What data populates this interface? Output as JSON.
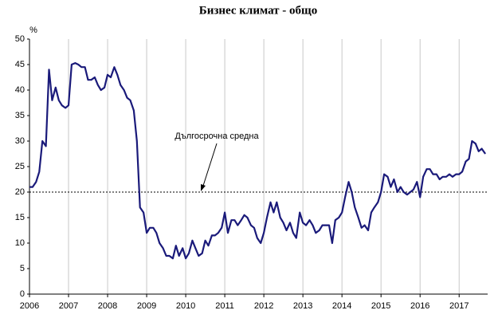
{
  "chart_data": {
    "type": "line",
    "title": "Бизнес климат - общо",
    "y_unit": "%",
    "x": [
      2006,
      2006.08,
      2006.17,
      2006.25,
      2006.33,
      2006.42,
      2006.5,
      2006.58,
      2006.67,
      2006.75,
      2006.83,
      2006.92,
      2007,
      2007.08,
      2007.17,
      2007.25,
      2007.33,
      2007.42,
      2007.5,
      2007.58,
      2007.67,
      2007.75,
      2007.83,
      2007.92,
      2008,
      2008.08,
      2008.17,
      2008.25,
      2008.33,
      2008.42,
      2008.5,
      2008.58,
      2008.67,
      2008.75,
      2008.83,
      2008.92,
      2009,
      2009.08,
      2009.17,
      2009.25,
      2009.33,
      2009.42,
      2009.5,
      2009.58,
      2009.67,
      2009.75,
      2009.83,
      2009.92,
      2010,
      2010.08,
      2010.17,
      2010.25,
      2010.33,
      2010.42,
      2010.5,
      2010.58,
      2010.67,
      2010.75,
      2010.83,
      2010.92,
      2011,
      2011.08,
      2011.17,
      2011.25,
      2011.33,
      2011.42,
      2011.5,
      2011.58,
      2011.67,
      2011.75,
      2011.83,
      2011.92,
      2012,
      2012.08,
      2012.17,
      2012.25,
      2012.33,
      2012.42,
      2012.5,
      2012.58,
      2012.67,
      2012.75,
      2012.83,
      2012.92,
      2013,
      2013.08,
      2013.17,
      2013.25,
      2013.33,
      2013.42,
      2013.5,
      2013.58,
      2013.67,
      2013.75,
      2013.83,
      2013.92,
      2014,
      2014.08,
      2014.17,
      2014.25,
      2014.33,
      2014.42,
      2014.5,
      2014.58,
      2014.67,
      2014.75,
      2014.83,
      2014.92,
      2015,
      2015.08,
      2015.17,
      2015.25,
      2015.33,
      2015.42,
      2015.5,
      2015.58,
      2015.67,
      2015.75,
      2015.83,
      2015.92,
      2016,
      2016.08,
      2016.17,
      2016.25,
      2016.33,
      2016.42,
      2016.5,
      2016.58,
      2016.67,
      2016.75,
      2016.83,
      2016.92,
      2017,
      2017.08,
      2017.17,
      2017.25,
      2017.33,
      2017.42,
      2017.5,
      2017.58,
      2017.67
    ],
    "series": [
      {
        "color": "#1a1a7a",
        "values": [
          21,
          21,
          22,
          24,
          30,
          29,
          44,
          38,
          40.5,
          38,
          37,
          36.5,
          37,
          45,
          45.3,
          45,
          44.5,
          44.5,
          42,
          42,
          42.5,
          41,
          40,
          40.5,
          43,
          42.5,
          44.5,
          43,
          41,
          40,
          38.5,
          38,
          36,
          30,
          17,
          16,
          12,
          13,
          13,
          12,
          10,
          9,
          7.5,
          7.5,
          7,
          9.5,
          7.5,
          9,
          7,
          8,
          10.5,
          9,
          7.5,
          8,
          10.5,
          9.5,
          11.5,
          11.5,
          12,
          13,
          16,
          12,
          14.5,
          14.5,
          13.5,
          14.5,
          15.5,
          15,
          13.5,
          13,
          11,
          10,
          12,
          15,
          18,
          16,
          18,
          15,
          14,
          12.5,
          14,
          12,
          11,
          16,
          14,
          13.5,
          14.5,
          13.5,
          12,
          12.5,
          13.5,
          13.5,
          13.5,
          10,
          14.5,
          15,
          16,
          19,
          22,
          20,
          17,
          15,
          13,
          13.5,
          12.5,
          16,
          17,
          18,
          20,
          23.5,
          23,
          21,
          22.5,
          20,
          21,
          20,
          19.5,
          20,
          20.5,
          22,
          19,
          23,
          24.5,
          24.5,
          23.5,
          23.5,
          22.5,
          23,
          23,
          23.5,
          23,
          23.5,
          23.5,
          24,
          26,
          26.5,
          30,
          29.5,
          28,
          28.5,
          27.5
        ]
      }
    ],
    "reference": {
      "value": 20,
      "label": "Дългосрочна средна"
    },
    "xlim": [
      2006,
      2017.73
    ],
    "xticks": [
      2006,
      2007,
      2008,
      2009,
      2010,
      2011,
      2012,
      2013,
      2014,
      2015,
      2016,
      2017
    ],
    "ylim": [
      0,
      50
    ],
    "yticks": [
      0,
      5,
      10,
      15,
      20,
      25,
      30,
      35,
      40,
      45,
      50
    ],
    "grid": true
  }
}
